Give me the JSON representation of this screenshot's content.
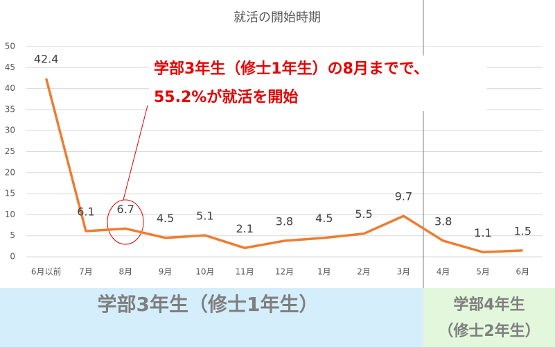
{
  "chart_data": {
    "type": "line",
    "title": "就活の開始時期",
    "categories": [
      "6月以前",
      "7月",
      "8月",
      "9月",
      "10月",
      "11月",
      "12月",
      "1月",
      "2月",
      "3月",
      "4月",
      "5月",
      "6月"
    ],
    "values": [
      42.4,
      6.1,
      6.7,
      4.5,
      5.1,
      2.1,
      3.8,
      4.5,
      5.5,
      9.7,
      3.8,
      1.1,
      1.5
    ],
    "color": "#ed7d31",
    "ylim": [
      0,
      50
    ],
    "yticks": [
      0,
      5,
      10,
      15,
      20,
      25,
      30,
      35,
      40,
      45,
      50
    ],
    "grid": true,
    "annotations": [
      "学部3年生（修士1年生）の8月までで、",
      "55.2%が就活を開始"
    ],
    "periods": [
      "学部3年生（修士1年生）",
      "学部4年生",
      "（修士2年生）"
    ]
  }
}
